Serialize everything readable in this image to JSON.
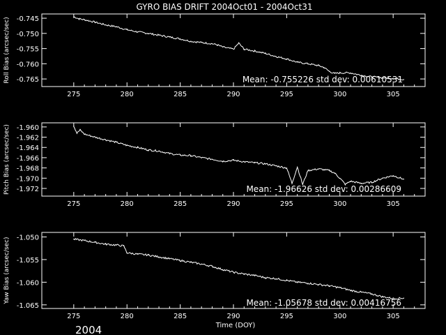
{
  "title": "GYRO BIAS DRIFT 2004Oct01 - 2004Oct31",
  "xlabel": "Time (DOY)",
  "year_label": "2004",
  "chart_data": [
    {
      "type": "line",
      "id": "roll",
      "ylabel": "Roll Bias (arcsec/sec)",
      "stats_text": "Mean: -0.755226 std dev: 0.00610531",
      "xlim": [
        272,
        308
      ],
      "ylim": [
        -0.7675,
        -0.7436
      ],
      "xticks": [
        275,
        280,
        285,
        290,
        295,
        300,
        305
      ],
      "yticks": [
        -0.745,
        -0.75,
        -0.755,
        -0.76,
        -0.765
      ],
      "yticklabels": [
        "-0.745",
        "-0.750",
        "-0.755",
        "-0.760",
        "-0.765"
      ],
      "x": [
        275.0,
        275.5,
        276.0,
        277.0,
        278.0,
        279.0,
        280.0,
        281.0,
        282.0,
        283.0,
        284.0,
        285.0,
        286.0,
        287.0,
        288.0,
        288.5,
        289.0,
        290.0,
        290.5,
        291.0,
        292.0,
        293.0,
        294.0,
        295.0,
        296.0,
        297.0,
        298.0,
        298.5,
        299.0,
        299.5,
        300.0,
        301.0,
        302.0,
        303.0,
        304.0,
        305.0,
        306.0
      ],
      "y": [
        -0.7445,
        -0.7452,
        -0.7455,
        -0.7463,
        -0.7472,
        -0.7478,
        -0.7488,
        -0.7495,
        -0.75,
        -0.7506,
        -0.7512,
        -0.7518,
        -0.7526,
        -0.753,
        -0.7534,
        -0.7538,
        -0.7545,
        -0.7552,
        -0.7532,
        -0.7552,
        -0.7558,
        -0.7566,
        -0.7576,
        -0.7584,
        -0.7595,
        -0.76,
        -0.7606,
        -0.7612,
        -0.7625,
        -0.7632,
        -0.763,
        -0.763,
        -0.7638,
        -0.7643,
        -0.7646,
        -0.7648,
        -0.7652
      ],
      "series": [
        {
          "values_from": "y"
        }
      ]
    },
    {
      "type": "line",
      "id": "pitch",
      "ylabel": "Pitch Bias (arcsec/sec)",
      "stats_text": "Mean: -1.96626 std dev: 0.00286609",
      "xlim": [
        272,
        308
      ],
      "ylim": [
        -1.9735,
        -1.9592
      ],
      "xticks": [
        275,
        280,
        285,
        290,
        295,
        300,
        305
      ],
      "yticks": [
        -1.96,
        -1.962,
        -1.964,
        -1.966,
        -1.968,
        -1.97,
        -1.972
      ],
      "yticklabels": [
        "-1.960",
        "-1.962",
        "-1.964",
        "-1.966",
        "-1.968",
        "-1.970",
        "-1.972"
      ],
      "x": [
        275.0,
        275.3,
        275.6,
        276.0,
        277.0,
        278.0,
        279.0,
        280.0,
        281.0,
        282.0,
        283.0,
        284.0,
        285.0,
        286.0,
        287.0,
        288.0,
        289.0,
        290.0,
        291.0,
        292.0,
        293.0,
        294.0,
        295.0,
        295.5,
        296.0,
        296.5,
        297.0,
        298.0,
        299.0,
        299.5,
        300.0,
        300.5,
        301.0,
        302.0,
        303.0,
        304.0,
        305.0,
        306.0
      ],
      "y": [
        -1.9598,
        -1.9612,
        -1.9606,
        -1.9614,
        -1.962,
        -1.9625,
        -1.963,
        -1.9636,
        -1.964,
        -1.9645,
        -1.9647,
        -1.9652,
        -1.9655,
        -1.9656,
        -1.966,
        -1.9663,
        -1.9667,
        -1.9665,
        -1.9668,
        -1.967,
        -1.9672,
        -1.9676,
        -1.968,
        -1.971,
        -1.9678,
        -1.9712,
        -1.9685,
        -1.9682,
        -1.9685,
        -1.969,
        -1.97,
        -1.9712,
        -1.9706,
        -1.971,
        -1.9708,
        -1.97,
        -1.9695,
        -1.9702
      ],
      "series": [
        {
          "values_from": "y"
        }
      ]
    },
    {
      "type": "line",
      "id": "yaw",
      "ylabel": "Yaw Bias (arcsec/sec)",
      "stats_text": "Mean: -1.05678 std dev: 0.00416756",
      "xlim": [
        272,
        308
      ],
      "ylim": [
        -1.0658,
        -1.049
      ],
      "xticks": [
        275,
        280,
        285,
        290,
        295,
        300,
        305
      ],
      "yticks": [
        -1.05,
        -1.055,
        -1.06,
        -1.065
      ],
      "yticklabels": [
        "-1.050",
        "-1.055",
        "-1.060",
        "-1.065"
      ],
      "x": [
        275.0,
        276.0,
        277.0,
        278.0,
        279.0,
        279.7,
        280.0,
        281.0,
        282.0,
        283.0,
        284.0,
        285.0,
        286.0,
        287.0,
        288.0,
        289.0,
        290.0,
        291.0,
        292.0,
        293.0,
        294.0,
        295.0,
        296.0,
        297.0,
        298.0,
        299.0,
        300.0,
        301.0,
        302.0,
        303.0,
        304.0,
        305.0,
        306.0
      ],
      "y": [
        -1.0505,
        -1.0508,
        -1.0512,
        -1.0516,
        -1.0518,
        -1.052,
        -1.0535,
        -1.0538,
        -1.054,
        -1.0544,
        -1.0548,
        -1.0552,
        -1.0556,
        -1.056,
        -1.0565,
        -1.0572,
        -1.0578,
        -1.0582,
        -1.0585,
        -1.059,
        -1.0592,
        -1.0596,
        -1.06,
        -1.0602,
        -1.0605,
        -1.0608,
        -1.0612,
        -1.0618,
        -1.0622,
        -1.0626,
        -1.0632,
        -1.0636,
        -1.0635
      ],
      "series": [
        {
          "values_from": "y"
        }
      ]
    }
  ]
}
